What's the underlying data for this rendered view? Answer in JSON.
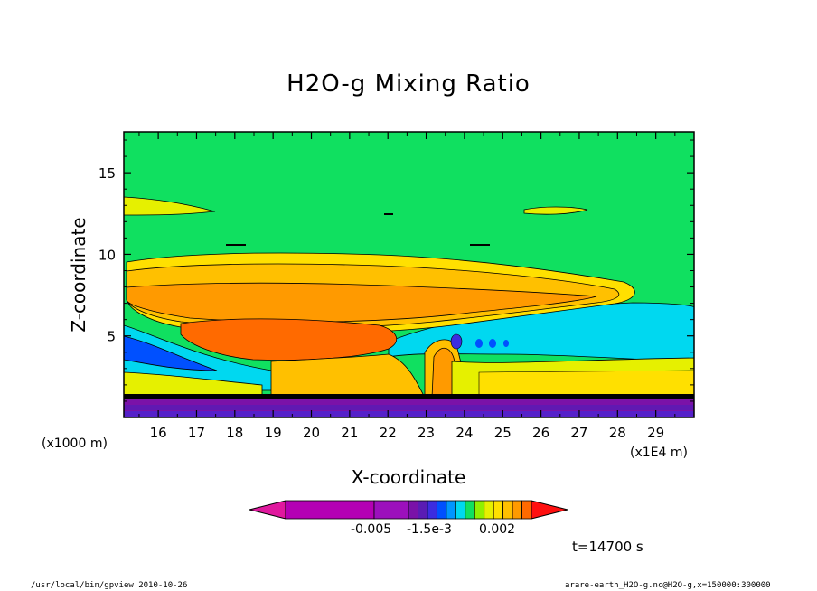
{
  "chart_data": {
    "type": "heatmap",
    "title": "H2O-g Mixing Ratio",
    "xlabel": "X-coordinate",
    "ylabel": "Z-coordinate",
    "x_unit_note_left": "(x1000 m)",
    "x_unit_note_right": "(x1E4 m)",
    "x_ticks": [
      "16",
      "17",
      "18",
      "19",
      "20",
      "21",
      "22",
      "23",
      "24",
      "25",
      "26",
      "27",
      "28",
      "29"
    ],
    "x_range": [
      15.1,
      30.0
    ],
    "y_ticks": [
      "5",
      "10",
      "15"
    ],
    "y_range": [
      0,
      17.5
    ],
    "grid": false,
    "colorbar": {
      "labels": [
        "-0.005",
        "-1.5e-3",
        "0.002"
      ],
      "colors": [
        "#e0189e",
        "#b400b4",
        "#9c10bc",
        "#7a12a8",
        "#5a1cb4",
        "#3c2ce0",
        "#0050ff",
        "#0096ff",
        "#00d8f0",
        "#10e060",
        "#90f000",
        "#e6f000",
        "#ffe000",
        "#ffc000",
        "#ff9a00",
        "#ff6a00",
        "#ff1010"
      ]
    },
    "time_label": "t=14700 s"
  },
  "footer": {
    "left": "/usr/local/bin/gpview  2010-10-26",
    "right": "arare-earth_H2O-g.nc@H2O-g,x=150000:300000"
  }
}
